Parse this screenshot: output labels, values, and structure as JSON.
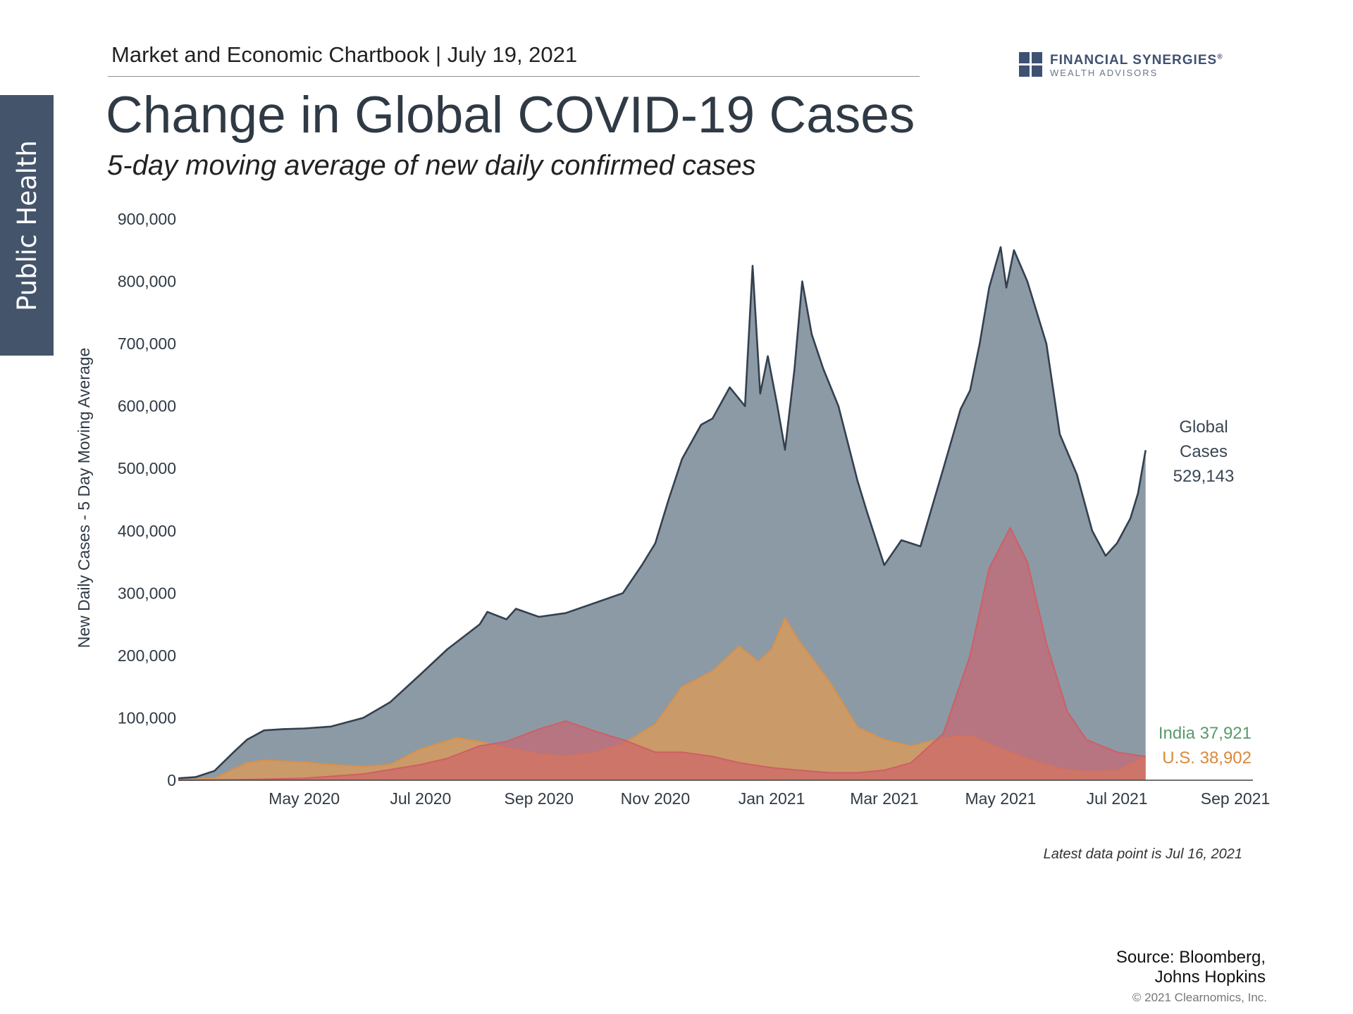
{
  "header": {
    "chartbook": "Market and Economic Chartbook | July 19, 2021",
    "logo_name": "FINANCIAL SYNERGIES",
    "logo_reg": "®",
    "logo_sub": "WEALTH ADVISORS"
  },
  "side_tab": "Public Health",
  "title": "Change in Global COVID-19 Cases",
  "subtitle": "5-day moving average of new daily confirmed cases",
  "note": "Latest data point is Jul 16, 2021",
  "source_line1": "Source: Bloomberg,",
  "source_line2": "Johns Hopkins",
  "copyright": "© 2021 Clearnomics, Inc.",
  "colors": {
    "global_fill": "#8c9aa6",
    "global_line": "#33404f",
    "us_fill": "#dd9a58",
    "us_line": "#d99147",
    "india_fill": "#d0606a",
    "india_line": "#cf5f63",
    "india_label": "#5a9a6a",
    "us_label": "#d9893b"
  },
  "chart_data": {
    "type": "area",
    "ylabel": "New Daily Cases - 5 Day Moving Average",
    "xlabel": "",
    "ylim": [
      0,
      900000
    ],
    "y_ticks": [
      0,
      100000,
      200000,
      300000,
      400000,
      500000,
      600000,
      700000,
      800000,
      900000
    ],
    "y_tick_labels": [
      "0",
      "100,000",
      "200,000",
      "300,000",
      "400,000",
      "500,000",
      "600,000",
      "700,000",
      "800,000",
      "900,000"
    ],
    "x_ticks": [
      "2020-05-01",
      "2020-07-01",
      "2020-09-01",
      "2020-11-01",
      "2021-01-01",
      "2021-03-01",
      "2021-05-01",
      "2021-07-01",
      "2021-09-01"
    ],
    "x_tick_labels": [
      "May 2020",
      "Jul 2020",
      "Sep 2020",
      "Nov 2020",
      "Jan 2021",
      "Mar 2021",
      "May 2021",
      "Jul 2021",
      "Sep 2021"
    ],
    "xlim": [
      "2020-02-25",
      "2021-09-01"
    ],
    "series": [
      {
        "name": "Global Cases",
        "label_lines": [
          "Global",
          "Cases",
          "529,143"
        ],
        "points": [
          [
            "2020-02-25",
            3000
          ],
          [
            "2020-03-05",
            5000
          ],
          [
            "2020-03-15",
            15000
          ],
          [
            "2020-03-25",
            45000
          ],
          [
            "2020-04-01",
            65000
          ],
          [
            "2020-04-10",
            80000
          ],
          [
            "2020-04-20",
            82000
          ],
          [
            "2020-05-01",
            83000
          ],
          [
            "2020-05-15",
            86000
          ],
          [
            "2020-06-01",
            100000
          ],
          [
            "2020-06-15",
            125000
          ],
          [
            "2020-07-01",
            170000
          ],
          [
            "2020-07-15",
            210000
          ],
          [
            "2020-08-01",
            250000
          ],
          [
            "2020-08-05",
            270000
          ],
          [
            "2020-08-15",
            258000
          ],
          [
            "2020-08-20",
            275000
          ],
          [
            "2020-09-01",
            262000
          ],
          [
            "2020-09-15",
            268000
          ],
          [
            "2020-10-01",
            285000
          ],
          [
            "2020-10-15",
            300000
          ],
          [
            "2020-10-25",
            345000
          ],
          [
            "2020-11-01",
            380000
          ],
          [
            "2020-11-08",
            450000
          ],
          [
            "2020-11-15",
            515000
          ],
          [
            "2020-11-25",
            570000
          ],
          [
            "2020-12-01",
            580000
          ],
          [
            "2020-12-10",
            630000
          ],
          [
            "2020-12-18",
            600000
          ],
          [
            "2020-12-22",
            825000
          ],
          [
            "2020-12-26",
            620000
          ],
          [
            "2020-12-30",
            680000
          ],
          [
            "2021-01-04",
            600000
          ],
          [
            "2021-01-08",
            530000
          ],
          [
            "2021-01-13",
            660000
          ],
          [
            "2021-01-17",
            800000
          ],
          [
            "2021-01-22",
            715000
          ],
          [
            "2021-01-28",
            660000
          ],
          [
            "2021-02-05",
            600000
          ],
          [
            "2021-02-15",
            480000
          ],
          [
            "2021-02-20",
            430000
          ],
          [
            "2021-03-01",
            345000
          ],
          [
            "2021-03-10",
            385000
          ],
          [
            "2021-03-20",
            375000
          ],
          [
            "2021-04-01",
            500000
          ],
          [
            "2021-04-10",
            595000
          ],
          [
            "2021-04-15",
            625000
          ],
          [
            "2021-04-20",
            700000
          ],
          [
            "2021-04-25",
            790000
          ],
          [
            "2021-05-01",
            855000
          ],
          [
            "2021-05-04",
            790000
          ],
          [
            "2021-05-08",
            850000
          ],
          [
            "2021-05-15",
            800000
          ],
          [
            "2021-05-25",
            700000
          ],
          [
            "2021-06-01",
            555000
          ],
          [
            "2021-06-10",
            490000
          ],
          [
            "2021-06-18",
            400000
          ],
          [
            "2021-06-25",
            360000
          ],
          [
            "2021-07-01",
            380000
          ],
          [
            "2021-07-08",
            420000
          ],
          [
            "2021-07-12",
            460000
          ],
          [
            "2021-07-16",
            529143
          ]
        ]
      },
      {
        "name": "India",
        "label": "India 37,921",
        "points": [
          [
            "2020-02-25",
            0
          ],
          [
            "2020-04-01",
            1000
          ],
          [
            "2020-05-01",
            3000
          ],
          [
            "2020-06-01",
            10000
          ],
          [
            "2020-07-01",
            25000
          ],
          [
            "2020-07-15",
            35000
          ],
          [
            "2020-08-01",
            55000
          ],
          [
            "2020-08-15",
            62000
          ],
          [
            "2020-09-01",
            82000
          ],
          [
            "2020-09-15",
            95000
          ],
          [
            "2020-10-01",
            78000
          ],
          [
            "2020-10-15",
            65000
          ],
          [
            "2020-11-01",
            45000
          ],
          [
            "2020-11-15",
            45000
          ],
          [
            "2020-12-01",
            38000
          ],
          [
            "2020-12-15",
            28000
          ],
          [
            "2021-01-01",
            20000
          ],
          [
            "2021-01-15",
            16000
          ],
          [
            "2021-02-01",
            12000
          ],
          [
            "2021-02-15",
            12000
          ],
          [
            "2021-03-01",
            16000
          ],
          [
            "2021-03-15",
            28000
          ],
          [
            "2021-04-01",
            75000
          ],
          [
            "2021-04-15",
            200000
          ],
          [
            "2021-04-25",
            340000
          ],
          [
            "2021-05-06",
            405000
          ],
          [
            "2021-05-15",
            350000
          ],
          [
            "2021-05-25",
            220000
          ],
          [
            "2021-06-05",
            110000
          ],
          [
            "2021-06-15",
            65000
          ],
          [
            "2021-07-01",
            45000
          ],
          [
            "2021-07-16",
            37921
          ]
        ]
      },
      {
        "name": "U.S.",
        "label": "U.S. 38,902",
        "points": [
          [
            "2020-02-25",
            0
          ],
          [
            "2020-03-15",
            3000
          ],
          [
            "2020-04-01",
            28000
          ],
          [
            "2020-04-10",
            32000
          ],
          [
            "2020-05-01",
            29000
          ],
          [
            "2020-05-15",
            25000
          ],
          [
            "2020-06-01",
            22000
          ],
          [
            "2020-06-15",
            25000
          ],
          [
            "2020-07-01",
            50000
          ],
          [
            "2020-07-20",
            68000
          ],
          [
            "2020-08-01",
            62000
          ],
          [
            "2020-08-15",
            52000
          ],
          [
            "2020-09-01",
            42000
          ],
          [
            "2020-09-15",
            38000
          ],
          [
            "2020-10-01",
            45000
          ],
          [
            "2020-10-15",
            58000
          ],
          [
            "2020-11-01",
            90000
          ],
          [
            "2020-11-15",
            150000
          ],
          [
            "2020-12-01",
            175000
          ],
          [
            "2020-12-15",
            215000
          ],
          [
            "2020-12-25",
            190000
          ],
          [
            "2021-01-01",
            210000
          ],
          [
            "2021-01-08",
            260000
          ],
          [
            "2021-01-15",
            225000
          ],
          [
            "2021-02-01",
            155000
          ],
          [
            "2021-02-15",
            85000
          ],
          [
            "2021-03-01",
            65000
          ],
          [
            "2021-03-15",
            55000
          ],
          [
            "2021-04-01",
            68000
          ],
          [
            "2021-04-15",
            72000
          ],
          [
            "2021-05-01",
            50000
          ],
          [
            "2021-05-15",
            35000
          ],
          [
            "2021-06-01",
            18000
          ],
          [
            "2021-06-15",
            14000
          ],
          [
            "2021-07-01",
            15000
          ],
          [
            "2021-07-16",
            38902
          ]
        ]
      }
    ]
  }
}
